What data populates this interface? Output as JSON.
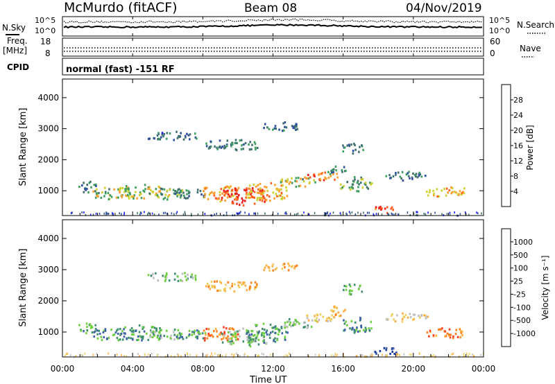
{
  "header": {
    "station": "McMurdo (fitACF)",
    "beam": "Beam 08",
    "date": "04/Nov/2019"
  },
  "noise_panel": {
    "left_label": "N.Sky",
    "right_label": "N.Search",
    "tick_top": "10^5",
    "tick_bottom": "10^0"
  },
  "freq_panel": {
    "left_label_line1": "Freq.",
    "left_label_line2": "[MHz]",
    "right_label": "Nave",
    "left_tick_top": "18",
    "left_tick_bottom": "8",
    "right_tick_top": "60",
    "right_tick_bottom": "0"
  },
  "cpid_panel": {
    "label": "CPID",
    "text": "normal (fast) -151 RF"
  },
  "colors": {
    "power_scale": [
      "#1f1fff",
      "#2f4f9f",
      "#3f6f6f",
      "#3f9f5f",
      "#cfcf2f",
      "#ff9f2f",
      "#ff5f1f",
      "#ef1f1f"
    ],
    "velocity_scale": [
      "#1f3f9f",
      "#3f5faf",
      "#3f8f6f",
      "#6fcf3f",
      "#bfbfbf",
      "#efcf5f",
      "#ffaf3f",
      "#ff7f1f",
      "#ff3f1f"
    ]
  },
  "chart_data": [
    {
      "type": "heatmap",
      "name": "Power",
      "ylabel": "Slant Range [km]",
      "yticks": [
        "1000",
        "2000",
        "3000",
        "4000"
      ],
      "ylim": [
        200,
        4600
      ],
      "colorbar_label": "Power [dB]",
      "colorbar_ticks": [
        "4",
        "8",
        "12",
        "16",
        "20",
        "24",
        "28"
      ],
      "colorbar_range": [
        0,
        30
      ],
      "blobs": [
        {
          "t": 1.4,
          "r": 1150,
          "dt": 0.5,
          "dr": 200,
          "v": 10
        },
        {
          "t": 2.8,
          "r": 950,
          "dt": 1.1,
          "dr": 220,
          "v": 15
        },
        {
          "t": 4.4,
          "r": 1000,
          "dt": 1.2,
          "dr": 260,
          "v": 16
        },
        {
          "t": 5.9,
          "r": 950,
          "dt": 1.0,
          "dr": 200,
          "v": 14
        },
        {
          "t": 7.2,
          "r": 950,
          "dt": 0.9,
          "dr": 180,
          "v": 10
        },
        {
          "t": 9.0,
          "r": 950,
          "dt": 1.0,
          "dr": 280,
          "v": 21
        },
        {
          "t": 10.3,
          "r": 850,
          "dt": 1.3,
          "dr": 300,
          "v": 27
        },
        {
          "t": 11.6,
          "r": 1000,
          "dt": 1.2,
          "dr": 320,
          "v": 20
        },
        {
          "t": 13.4,
          "r": 1300,
          "dt": 1.0,
          "dr": 180,
          "v": 16
        },
        {
          "t": 14.7,
          "r": 1500,
          "dt": 1.0,
          "dr": 150,
          "v": 23
        },
        {
          "t": 16.7,
          "r": 1250,
          "dt": 0.9,
          "dr": 260,
          "v": 12
        },
        {
          "t": 18.4,
          "r": 420,
          "dt": 0.7,
          "dr": 120,
          "v": 27
        },
        {
          "t": 19.6,
          "r": 1500,
          "dt": 1.2,
          "dr": 150,
          "v": 9
        },
        {
          "t": 21.8,
          "r": 1000,
          "dt": 1.1,
          "dr": 180,
          "v": 20
        },
        {
          "t": 6.2,
          "r": 2800,
          "dt": 1.4,
          "dr": 160,
          "v": 8
        },
        {
          "t": 9.6,
          "r": 2500,
          "dt": 1.5,
          "dr": 200,
          "v": 9
        },
        {
          "t": 12.4,
          "r": 3100,
          "dt": 1.0,
          "dr": 150,
          "v": 8
        },
        {
          "t": 16.5,
          "r": 2400,
          "dt": 0.6,
          "dr": 180,
          "v": 10
        },
        {
          "t": 15.6,
          "r": 1700,
          "dt": 0.5,
          "dr": 180,
          "v": 10
        }
      ]
    },
    {
      "type": "heatmap",
      "name": "Velocity",
      "ylabel": "Slant Range [km]",
      "yticks": [
        "1000",
        "2000",
        "3000",
        "4000"
      ],
      "ylim": [
        200,
        4600
      ],
      "colorbar_label": "Velocity [m s⁻¹]",
      "colorbar_ticks": [
        "1000",
        "500",
        "100",
        "25",
        "-25",
        "-100",
        "-500",
        "-1000"
      ],
      "blobs": [
        {
          "t": 1.4,
          "r": 1150,
          "dt": 0.5,
          "dr": 200,
          "v": 2
        },
        {
          "t": 2.8,
          "r": 950,
          "dt": 1.1,
          "dr": 220,
          "v": 2
        },
        {
          "t": 4.4,
          "r": 1000,
          "dt": 1.2,
          "dr": 260,
          "v": 2
        },
        {
          "t": 5.9,
          "r": 950,
          "dt": 1.0,
          "dr": 200,
          "v": 3
        },
        {
          "t": 7.2,
          "r": 950,
          "dt": 0.9,
          "dr": 180,
          "v": 2
        },
        {
          "t": 9.0,
          "r": 950,
          "dt": 1.0,
          "dr": 280,
          "v": 7
        },
        {
          "t": 10.3,
          "r": 850,
          "dt": 1.3,
          "dr": 300,
          "v": 3
        },
        {
          "t": 11.6,
          "r": 1000,
          "dt": 1.2,
          "dr": 320,
          "v": 2
        },
        {
          "t": 13.4,
          "r": 1300,
          "dt": 1.0,
          "dr": 180,
          "v": 3
        },
        {
          "t": 14.7,
          "r": 1500,
          "dt": 1.0,
          "dr": 150,
          "v": 5
        },
        {
          "t": 16.7,
          "r": 1250,
          "dt": 0.9,
          "dr": 260,
          "v": 2
        },
        {
          "t": 18.4,
          "r": 420,
          "dt": 0.7,
          "dr": 120,
          "v": 0
        },
        {
          "t": 19.6,
          "r": 1500,
          "dt": 1.2,
          "dr": 150,
          "v": 5
        },
        {
          "t": 21.8,
          "r": 1000,
          "dt": 1.1,
          "dr": 180,
          "v": 7
        },
        {
          "t": 6.2,
          "r": 2800,
          "dt": 1.4,
          "dr": 160,
          "v": 3
        },
        {
          "t": 9.6,
          "r": 2500,
          "dt": 1.5,
          "dr": 200,
          "v": 6
        },
        {
          "t": 12.4,
          "r": 3100,
          "dt": 1.0,
          "dr": 150,
          "v": 6
        },
        {
          "t": 16.5,
          "r": 2400,
          "dt": 0.6,
          "dr": 180,
          "v": 3
        },
        {
          "t": 15.6,
          "r": 1700,
          "dt": 0.5,
          "dr": 180,
          "v": 6
        }
      ]
    }
  ],
  "x_axis": {
    "label": "Time UT",
    "ticks": [
      "00:00",
      "04:00",
      "08:00",
      "12:00",
      "16:00",
      "20:00",
      "00:00"
    ],
    "range_hours": [
      0,
      24
    ]
  }
}
